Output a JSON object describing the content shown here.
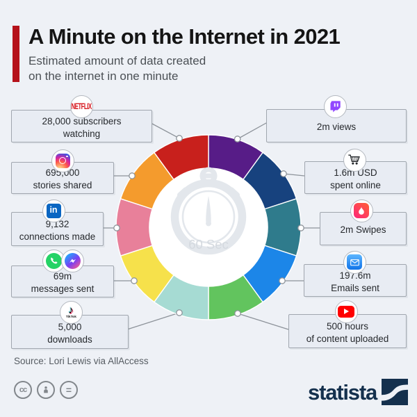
{
  "header": {
    "title": "A Minute on the Internet in 2021",
    "subtitle": "Estimated amount of data created\non the internet in one minute",
    "accent_color": "#b5121b"
  },
  "center": {
    "label": "60 Sec"
  },
  "items": [
    {
      "platform": "Netflix",
      "icon": "netflix-icon",
      "text": "28,000 subscribers\nwatching"
    },
    {
      "platform": "Instagram",
      "icon": "instagram-icon",
      "text": "695,000\nstories shared"
    },
    {
      "platform": "LinkedIn",
      "icon": "linkedin-icon",
      "text": "9,132\nconnections made"
    },
    {
      "platform": "WhatsApp & Messenger",
      "icon": "whatsapp-icon + messenger-icon",
      "text": "69m\nmessages sent"
    },
    {
      "platform": "TikTok",
      "icon": "tiktok-icon",
      "text": "5,000\ndownloads"
    },
    {
      "platform": "Twitch",
      "icon": "twitch-icon",
      "text": "2m views"
    },
    {
      "platform": "Online shopping",
      "icon": "cart-icon",
      "text": "1.6m USD\nspent online"
    },
    {
      "platform": "Tinder",
      "icon": "tinder-icon",
      "text": "2m Swipes"
    },
    {
      "platform": "Email",
      "icon": "email-icon",
      "text": "197.6m\nEmails sent"
    },
    {
      "platform": "YouTube",
      "icon": "youtube-icon",
      "text": "500 hours\nof content uploaded"
    }
  ],
  "chart_data": {
    "type": "pie",
    "subtype": "donut",
    "title": "A Minute on the Internet in 2021",
    "center_label": "60 Sec",
    "legend_position": "callouts-around-donut",
    "note": "10 equal decorative segments, one per platform, clockwise from 12 o'clock",
    "segments": [
      {
        "label": "Twitch",
        "value": "2m views",
        "share_deg": 36,
        "color": "#571c87"
      },
      {
        "label": "Online shopping",
        "value": "1.6m USD spent online",
        "share_deg": 36,
        "color": "#17427e"
      },
      {
        "label": "Tinder",
        "value": "2m Swipes",
        "share_deg": 36,
        "color": "#2f7b8c"
      },
      {
        "label": "Email",
        "value": "197.6m Emails sent",
        "share_deg": 36,
        "color": "#1c86e8"
      },
      {
        "label": "YouTube",
        "value": "500 hours of content uploaded",
        "share_deg": 36,
        "color": "#62c45e"
      },
      {
        "label": "TikTok",
        "value": "5,000 downloads",
        "share_deg": 36,
        "color": "#a6dbd3"
      },
      {
        "label": "WhatsApp & Messenger",
        "value": "69m messages sent",
        "share_deg": 36,
        "color": "#f6e14b"
      },
      {
        "label": "LinkedIn",
        "value": "9,132 connections made",
        "share_deg": 36,
        "color": "#e8809a"
      },
      {
        "label": "Instagram",
        "value": "695,000 stories shared",
        "share_deg": 36,
        "color": "#f49b2d"
      },
      {
        "label": "Netflix",
        "value": "28,000 subscribers watching",
        "share_deg": 36,
        "color": "#c8201c"
      }
    ]
  },
  "footer": {
    "source": "Source: Lori Lewis via AllAccess",
    "license_icons": [
      "cc",
      "attribution-person",
      "equals"
    ],
    "brand": "statista",
    "brand_color": "#14304d"
  }
}
